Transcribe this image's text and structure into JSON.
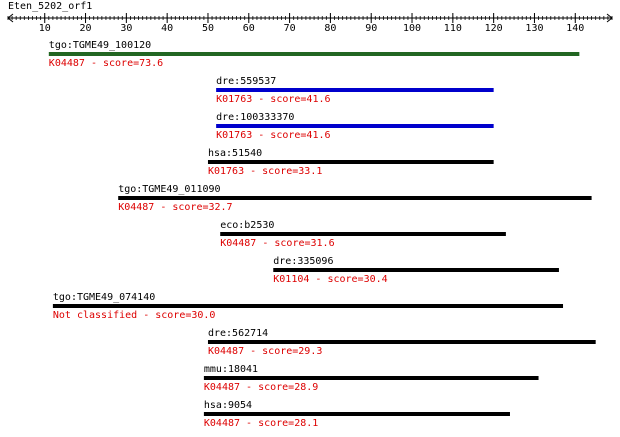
{
  "chart_data": {
    "type": "range",
    "title": "Eten_5202_orf1",
    "xlim": [
      1,
      149
    ],
    "xticks": [
      10,
      20,
      30,
      40,
      50,
      60,
      70,
      80,
      90,
      100,
      110,
      120,
      130,
      140
    ],
    "rows": [
      {
        "name": "tgo:TGME49_100120",
        "annotation": "K04487 - score=73.6",
        "start": 11,
        "end": 141,
        "color": "#226622"
      },
      {
        "name": "dre:559537",
        "annotation": "K01763 - score=41.6",
        "start": 52,
        "end": 120,
        "color": "#0000cc"
      },
      {
        "name": "dre:100333370",
        "annotation": "K01763 - score=41.6",
        "start": 52,
        "end": 120,
        "color": "#0000cc"
      },
      {
        "name": "hsa:51540",
        "annotation": "K01763 - score=33.1",
        "start": 50,
        "end": 120,
        "color": "#000000"
      },
      {
        "name": "tgo:TGME49_011090",
        "annotation": "K04487 - score=32.7",
        "start": 28,
        "end": 144,
        "color": "#000000"
      },
      {
        "name": "eco:b2530",
        "annotation": "K04487 - score=31.6",
        "start": 53,
        "end": 123,
        "color": "#000000"
      },
      {
        "name": "dre:335096",
        "annotation": "K01104 - score=30.4",
        "start": 66,
        "end": 136,
        "color": "#000000"
      },
      {
        "name": "tgo:TGME49_074140",
        "annotation": "Not classified - score=30.0",
        "start": 12,
        "end": 137,
        "color": "#000000"
      },
      {
        "name": "dre:562714",
        "annotation": "K04487 - score=29.3",
        "start": 50,
        "end": 145,
        "color": "#000000"
      },
      {
        "name": "mmu:18041",
        "annotation": "K04487 - score=28.9",
        "start": 49,
        "end": 131,
        "color": "#000000"
      },
      {
        "name": "hsa:9054",
        "annotation": "K04487 - score=28.1",
        "start": 49,
        "end": 124,
        "color": "#000000"
      }
    ]
  }
}
